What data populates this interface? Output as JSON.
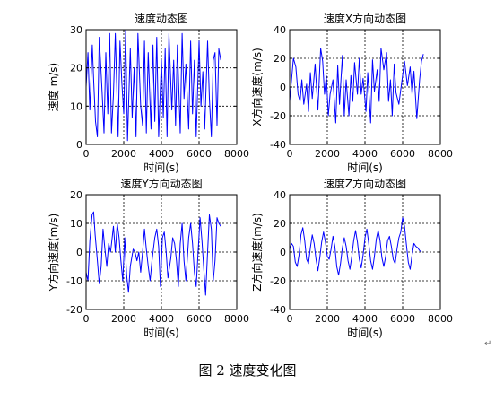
{
  "figure_caption": "图 2  速度变化图",
  "trailing_mark": "↵",
  "chart_data": [
    {
      "type": "line",
      "title": "速度动态图",
      "xlabel": "时间(s)",
      "ylabel": "速度 m/s)",
      "xlim": [
        0,
        8000
      ],
      "ylim": [
        0,
        30
      ],
      "xticks": [
        0,
        2000,
        4000,
        6000,
        8000
      ],
      "yticks": [
        0,
        10,
        20,
        30
      ],
      "xtick_labels": [
        "0",
        "2000",
        "4000",
        "6000",
        "8000"
      ],
      "ytick_labels": [
        "0",
        "10",
        "20",
        "30"
      ],
      "grid": true,
      "color": "#0000ff",
      "x": [
        0,
        100,
        200,
        330,
        400,
        500,
        600,
        700,
        850,
        950,
        1050,
        1150,
        1250,
        1350,
        1450,
        1550,
        1700,
        1800,
        1900,
        2000,
        2100,
        2200,
        2350,
        2450,
        2550,
        2650,
        2750,
        2900,
        3000,
        3100,
        3200,
        3300,
        3450,
        3550,
        3650,
        3750,
        3850,
        4000,
        4100,
        4200,
        4300,
        4400,
        4550,
        4650,
        4750,
        4850,
        5000,
        5100,
        5200,
        5300,
        5450,
        5550,
        5650,
        5750,
        5850,
        6000,
        6100,
        6200,
        6300,
        6450,
        6550,
        6650,
        6750,
        6850,
        6950,
        7050,
        7150
      ],
      "y": [
        15,
        24,
        9,
        26,
        17,
        6,
        2,
        28,
        14,
        3,
        24,
        8,
        29,
        3,
        13,
        29,
        2,
        27,
        16,
        8,
        30,
        1,
        25,
        7,
        20,
        2,
        29,
        10,
        5,
        27,
        3,
        24,
        4,
        26,
        6,
        28,
        2,
        22,
        7,
        25,
        2,
        29,
        9,
        22,
        5,
        26,
        3,
        29,
        12,
        21,
        4,
        27,
        8,
        22,
        2,
        27,
        10,
        19,
        4,
        27,
        12,
        2,
        22,
        24,
        5,
        25,
        22
      ]
    },
    {
      "type": "line",
      "title": "速度X方向动态图",
      "xlabel": "时间(s)",
      "ylabel": "X方向速度(m/s)",
      "xlim": [
        0,
        8000
      ],
      "ylim": [
        -40,
        40
      ],
      "xticks": [
        0,
        2000,
        4000,
        6000,
        8000
      ],
      "yticks": [
        -40,
        -20,
        0,
        20,
        40
      ],
      "xtick_labels": [
        "0",
        "2000",
        "4000",
        "6000",
        "8000"
      ],
      "ytick_labels": [
        "-40",
        "-20",
        "0",
        "20",
        "40"
      ],
      "grid": true,
      "color": "#0000ff",
      "x": [
        0,
        100,
        200,
        330,
        450,
        550,
        650,
        750,
        900,
        1000,
        1100,
        1200,
        1350,
        1500,
        1650,
        1750,
        1850,
        1950,
        2050,
        2150,
        2300,
        2450,
        2550,
        2650,
        2800,
        2900,
        3000,
        3150,
        3250,
        3350,
        3450,
        3600,
        3700,
        3800,
        3900,
        4050,
        4150,
        4300,
        4400,
        4500,
        4650,
        4750,
        4850,
        5000,
        5150,
        5250,
        5350,
        5450,
        5550,
        5650,
        5800,
        5950,
        6100,
        6250,
        6400,
        6500,
        6600,
        6750,
        6900,
        7000,
        7100
      ],
      "y": [
        -10,
        5,
        20,
        14,
        -5,
        -10,
        5,
        -12,
        2,
        -17,
        10,
        -8,
        16,
        -16,
        27,
        18,
        -5,
        8,
        -20,
        -5,
        5,
        -25,
        15,
        -12,
        22,
        -20,
        5,
        -20,
        8,
        -10,
        17,
        -5,
        20,
        -5,
        6,
        -17,
        10,
        -25,
        19,
        -3,
        12,
        -10,
        27,
        12,
        24,
        -10,
        5,
        -20,
        16,
        -4,
        -12,
        3,
        18,
        1,
        14,
        -5,
        11,
        -22,
        5,
        18,
        23
      ]
    },
    {
      "type": "line",
      "title": "速度Y方向动态图",
      "xlabel": "时间(s)",
      "ylabel": "Y方向速度(m/s)",
      "xlim": [
        0,
        8000
      ],
      "ylim": [
        -20,
        20
      ],
      "xticks": [
        0,
        2000,
        4000,
        6000,
        8000
      ],
      "yticks": [
        -20,
        -10,
        0,
        10,
        20
      ],
      "xtick_labels": [
        "0",
        "2000",
        "4000",
        "6000",
        "8000"
      ],
      "ytick_labels": [
        "-20",
        "-10",
        "0",
        "10",
        "20"
      ],
      "grid": true,
      "color": "#0000ff",
      "x": [
        0,
        100,
        200,
        320,
        400,
        480,
        600,
        700,
        800,
        900,
        1000,
        1100,
        1200,
        1300,
        1450,
        1550,
        1650,
        1750,
        1850,
        1950,
        2050,
        2150,
        2250,
        2350,
        2500,
        2600,
        2700,
        2800,
        2900,
        3000,
        3100,
        3200,
        3300,
        3400,
        3500,
        3650,
        3750,
        3850,
        3950,
        4050,
        4150,
        4250,
        4350,
        4500,
        4600,
        4700,
        4800,
        4900,
        5000,
        5100,
        5200,
        5300,
        5450,
        5550,
        5650,
        5750,
        5850,
        5950,
        6050,
        6150,
        6250,
        6350,
        6450,
        6550,
        6650,
        6750,
        6850,
        6950,
        7050,
        7150
      ],
      "y": [
        -7,
        -10,
        4,
        13,
        14,
        6,
        -3,
        -11,
        -5,
        8,
        1,
        -5,
        3,
        0,
        9,
        0,
        10,
        5,
        -3,
        -10,
        5,
        -8,
        -14,
        -5,
        1,
        0,
        -3,
        0,
        -7,
        0,
        8,
        1,
        -5,
        -10,
        -3,
        5,
        8,
        2,
        -12,
        5,
        7,
        0,
        -9,
        -2,
        5,
        3,
        -3,
        -12,
        3,
        10,
        -3,
        -10,
        5,
        10,
        3,
        -7,
        -12,
        0,
        12,
        4,
        -6,
        -15,
        0,
        13,
        8,
        -10,
        -3,
        12,
        10,
        9
      ]
    },
    {
      "type": "line",
      "title": "速度Z方向动态图",
      "xlabel": "时间(s)",
      "ylabel": "Z方向速度(m/s)",
      "xlim": [
        0,
        8000
      ],
      "ylim": [
        -40,
        40
      ],
      "xticks": [
        0,
        2000,
        4000,
        6000,
        8000
      ],
      "yticks": [
        -40,
        -20,
        0,
        20,
        40
      ],
      "xtick_labels": [
        "0",
        "2000",
        "4000",
        "6000",
        "8000"
      ],
      "ytick_labels": [
        "-40",
        "-20",
        "0",
        "20",
        "40"
      ],
      "grid": true,
      "color": "#0000ff",
      "x": [
        0,
        100,
        200,
        300,
        400,
        500,
        600,
        700,
        800,
        900,
        1000,
        1100,
        1200,
        1300,
        1400,
        1500,
        1600,
        1700,
        1800,
        1900,
        2000,
        2100,
        2200,
        2300,
        2400,
        2500,
        2600,
        2700,
        2800,
        2900,
        3000,
        3100,
        3200,
        3300,
        3400,
        3500,
        3600,
        3700,
        3800,
        3900,
        4000,
        4100,
        4200,
        4300,
        4400,
        4500,
        4600,
        4700,
        4800,
        4900,
        5000,
        5100,
        5200,
        5300,
        5400,
        5500,
        5600,
        5700,
        5800,
        5900,
        6000,
        6100,
        6200,
        6300,
        6400,
        6500,
        6600,
        6700,
        6800,
        6900,
        7000
      ],
      "y": [
        2,
        6,
        4,
        -7,
        -10,
        -2,
        12,
        17,
        8,
        -5,
        -8,
        3,
        12,
        6,
        -5,
        -13,
        -4,
        7,
        14,
        7,
        -3,
        -5,
        2,
        11,
        4,
        -10,
        -16,
        -8,
        3,
        10,
        4,
        -6,
        -12,
        -3,
        8,
        15,
        7,
        -5,
        -11,
        -2,
        10,
        16,
        6,
        -6,
        -12,
        -3,
        9,
        15,
        8,
        -4,
        -10,
        -3,
        8,
        11,
        4,
        -5,
        -8,
        2,
        10,
        14,
        24,
        18,
        5,
        -7,
        -12,
        -2,
        6,
        4,
        3,
        1,
        0
      ]
    }
  ]
}
